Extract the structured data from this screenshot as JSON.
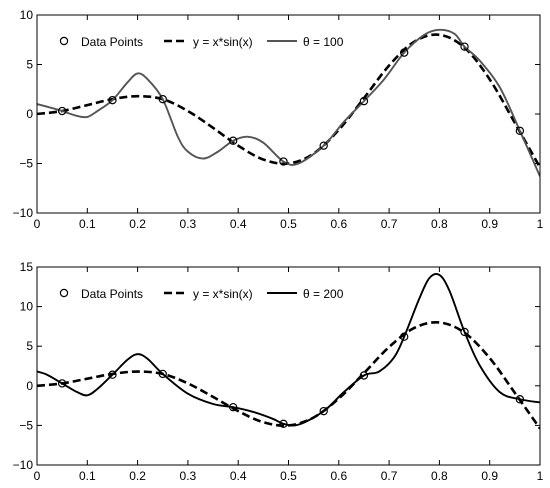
{
  "chart_data": [
    {
      "type": "line",
      "xlim": [
        0,
        1
      ],
      "ylim": [
        -10,
        10
      ],
      "x_ticks": [
        0,
        0.1,
        0.2,
        0.3,
        0.4,
        0.5,
        0.6,
        0.7,
        0.8,
        0.9,
        1
      ],
      "x_tick_labels": [
        "0",
        "0.1",
        "0.2",
        "0.3",
        "0.4",
        "0.5",
        "0.6",
        "0.7",
        "0.8",
        "0.9",
        "1"
      ],
      "y_ticks": [
        -10,
        -5,
        0,
        5,
        10
      ],
      "y_tick_labels": [
        "−10",
        "−5",
        "0",
        "5",
        "10"
      ],
      "grid": false,
      "legend_position": "top-left",
      "series": [
        {
          "name": "Data Points",
          "style": "open-circle",
          "color": "#000000",
          "x": [
            0.05,
            0.15,
            0.25,
            0.39,
            0.49,
            0.57,
            0.65,
            0.73,
            0.85,
            0.96
          ],
          "y": [
            0.3,
            1.4,
            1.5,
            -2.7,
            -4.8,
            -3.2,
            1.3,
            6.2,
            6.8,
            -1.7
          ]
        },
        {
          "name": "y = x*sin(x)",
          "style": "dashed",
          "color": "#000000",
          "x": [
            0,
            0.05,
            0.1,
            0.15,
            0.2,
            0.25,
            0.3,
            0.35,
            0.4,
            0.45,
            0.5,
            0.55,
            0.6,
            0.65,
            0.7,
            0.75,
            0.8,
            0.85,
            0.9,
            0.95,
            1
          ],
          "y": [
            0,
            0.3,
            0.9,
            1.5,
            1.8,
            1.5,
            0.3,
            -1.4,
            -3.2,
            -4.6,
            -5.0,
            -4.0,
            -1.6,
            1.6,
            4.9,
            7.3,
            8.0,
            6.7,
            3.5,
            -0.9,
            -5.4
          ]
        },
        {
          "name": "θ = 100",
          "style": "solid",
          "color": "#555555",
          "x": [
            0,
            0.03,
            0.05,
            0.08,
            0.1,
            0.12,
            0.15,
            0.18,
            0.2,
            0.22,
            0.25,
            0.28,
            0.3,
            0.33,
            0.36,
            0.39,
            0.42,
            0.45,
            0.49,
            0.52,
            0.57,
            0.61,
            0.65,
            0.69,
            0.73,
            0.77,
            0.8,
            0.83,
            0.85,
            0.88,
            0.92,
            0.96,
            1
          ],
          "y": [
            1.0,
            0.6,
            0.3,
            -0.2,
            -0.3,
            0.3,
            1.4,
            3.2,
            4.1,
            3.5,
            1.5,
            -2.3,
            -3.8,
            -4.5,
            -3.8,
            -2.7,
            -2.3,
            -2.9,
            -4.8,
            -5.0,
            -3.2,
            -0.8,
            1.3,
            3.5,
            6.2,
            8.0,
            8.5,
            8.1,
            6.8,
            5.4,
            2.7,
            -1.7,
            -6.3
          ]
        }
      ]
    },
    {
      "type": "line",
      "xlim": [
        0,
        1
      ],
      "ylim": [
        -10,
        15
      ],
      "x_ticks": [
        0,
        0.1,
        0.2,
        0.3,
        0.4,
        0.5,
        0.6,
        0.7,
        0.8,
        0.9,
        1
      ],
      "x_tick_labels": [
        "0",
        "0.1",
        "0.2",
        "0.3",
        "0.4",
        "0.5",
        "0.6",
        "0.7",
        "0.8",
        "0.9",
        "1"
      ],
      "y_ticks": [
        -10,
        -5,
        0,
        5,
        10,
        15
      ],
      "y_tick_labels": [
        "−10",
        "−5",
        "0",
        "5",
        "10",
        "15"
      ],
      "grid": false,
      "legend_position": "top-left",
      "series": [
        {
          "name": "Data Points",
          "style": "open-circle",
          "color": "#000000",
          "x": [
            0.05,
            0.15,
            0.25,
            0.39,
            0.49,
            0.57,
            0.65,
            0.73,
            0.85,
            0.96
          ],
          "y": [
            0.3,
            1.4,
            1.5,
            -2.7,
            -4.8,
            -3.2,
            1.3,
            6.2,
            6.8,
            -1.7
          ]
        },
        {
          "name": "y = x*sin(x)",
          "style": "dashed",
          "color": "#000000",
          "x": [
            0,
            0.05,
            0.1,
            0.15,
            0.2,
            0.25,
            0.3,
            0.35,
            0.4,
            0.45,
            0.5,
            0.55,
            0.6,
            0.65,
            0.7,
            0.75,
            0.8,
            0.85,
            0.9,
            0.95,
            1
          ],
          "y": [
            0,
            0.3,
            0.9,
            1.5,
            1.8,
            1.5,
            0.3,
            -1.4,
            -3.2,
            -4.6,
            -5.0,
            -4.0,
            -1.6,
            1.6,
            4.9,
            7.3,
            8.0,
            6.7,
            3.5,
            -0.9,
            -5.4
          ]
        },
        {
          "name": "θ = 200",
          "style": "solid",
          "color": "#000000",
          "x": [
            0,
            0.02,
            0.05,
            0.08,
            0.1,
            0.12,
            0.15,
            0.18,
            0.2,
            0.22,
            0.25,
            0.3,
            0.35,
            0.39,
            0.43,
            0.47,
            0.49,
            0.52,
            0.57,
            0.61,
            0.65,
            0.68,
            0.71,
            0.73,
            0.76,
            0.78,
            0.8,
            0.82,
            0.85,
            0.88,
            0.92,
            0.96,
            1
          ],
          "y": [
            1.8,
            1.4,
            0.3,
            -0.8,
            -1.2,
            -0.4,
            1.4,
            3.3,
            4.0,
            3.4,
            1.5,
            -1.0,
            -2.3,
            -2.7,
            -3.3,
            -4.2,
            -4.8,
            -4.9,
            -3.2,
            -0.8,
            1.3,
            1.8,
            3.6,
            6.2,
            11.0,
            13.6,
            14.0,
            12.0,
            6.8,
            2.6,
            -0.8,
            -1.7,
            -2.1
          ]
        }
      ]
    }
  ]
}
